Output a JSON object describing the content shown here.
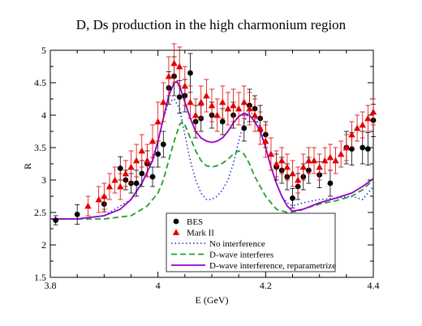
{
  "chart_data": {
    "type": "scatter",
    "title": "D, Ds production in the high charmonium region",
    "xlabel": "E (GeV)",
    "ylabel": "R",
    "xlim": [
      3.8,
      4.4
    ],
    "ylim": [
      1.5,
      5
    ],
    "xticks": [
      "3.8",
      "4",
      "4.2",
      "4.4"
    ],
    "yticks": [
      "1.5",
      "2",
      "2.5",
      "3",
      "3.5",
      "4",
      "4.5",
      "5"
    ],
    "grid": false,
    "legend_position": "bottom-center",
    "colors": {
      "bes": "#000000",
      "markii": "#e00000",
      "no_interference": "#2222cc",
      "d_wave": "#22a022",
      "reparametrize": "#9900cc"
    },
    "series": [
      {
        "name": "BES",
        "kind": "points",
        "marker": "circle",
        "points": [
          [
            3.81,
            2.38,
            0.07
          ],
          [
            3.85,
            2.47,
            0.15
          ],
          [
            3.9,
            2.63,
            0.12
          ],
          [
            3.93,
            3.18,
            0.18
          ],
          [
            3.94,
            3.0,
            0.15
          ],
          [
            3.95,
            2.95,
            0.15
          ],
          [
            3.96,
            2.95,
            0.2
          ],
          [
            3.97,
            3.1,
            0.2
          ],
          [
            3.98,
            3.25,
            0.2
          ],
          [
            3.99,
            3.05,
            0.15
          ],
          [
            4.0,
            3.4,
            0.2
          ],
          [
            4.01,
            3.55,
            0.2
          ],
          [
            4.02,
            4.42,
            0.25
          ],
          [
            4.03,
            4.6,
            0.3
          ],
          [
            4.04,
            4.28,
            0.25
          ],
          [
            4.05,
            4.3,
            0.25
          ],
          [
            4.06,
            4.65,
            0.3
          ],
          [
            4.07,
            3.9,
            0.25
          ],
          [
            4.08,
            3.95,
            0.2
          ],
          [
            4.1,
            4.0,
            0.2
          ],
          [
            4.12,
            3.9,
            0.2
          ],
          [
            4.14,
            4.0,
            0.2
          ],
          [
            4.16,
            3.8,
            0.2
          ],
          [
            4.17,
            4.15,
            0.25
          ],
          [
            4.18,
            4.1,
            0.2
          ],
          [
            4.19,
            3.95,
            0.2
          ],
          [
            4.2,
            3.7,
            0.2
          ],
          [
            4.22,
            3.2,
            0.2
          ],
          [
            4.23,
            3.15,
            0.2
          ],
          [
            4.24,
            3.05,
            0.2
          ],
          [
            4.25,
            2.72,
            0.15
          ],
          [
            4.26,
            2.9,
            0.2
          ],
          [
            4.27,
            3.05,
            0.2
          ],
          [
            4.28,
            3.15,
            0.2
          ],
          [
            4.3,
            3.08,
            0.2
          ],
          [
            4.32,
            2.95,
            0.2
          ],
          [
            4.35,
            3.5,
            0.25
          ],
          [
            4.36,
            3.48,
            0.25
          ],
          [
            4.38,
            3.5,
            0.25
          ],
          [
            4.39,
            3.48,
            0.25
          ],
          [
            4.4,
            3.92,
            0.25
          ]
        ]
      },
      {
        "name": "Mark II",
        "kind": "points",
        "marker": "triangle",
        "points": [
          [
            3.87,
            2.6,
            0.15
          ],
          [
            3.89,
            2.7,
            0.2
          ],
          [
            3.9,
            2.75,
            0.2
          ],
          [
            3.91,
            2.9,
            0.2
          ],
          [
            3.92,
            3.0,
            0.2
          ],
          [
            3.93,
            2.9,
            0.2
          ],
          [
            3.94,
            3.1,
            0.2
          ],
          [
            3.95,
            3.2,
            0.25
          ],
          [
            3.96,
            3.3,
            0.25
          ],
          [
            3.97,
            3.45,
            0.25
          ],
          [
            3.98,
            3.3,
            0.25
          ],
          [
            3.99,
            3.6,
            0.25
          ],
          [
            4.0,
            3.9,
            0.3
          ],
          [
            4.01,
            4.2,
            0.3
          ],
          [
            4.02,
            4.6,
            0.3
          ],
          [
            4.03,
            4.8,
            0.3
          ],
          [
            4.04,
            4.75,
            0.3
          ],
          [
            4.05,
            4.45,
            0.3
          ],
          [
            4.06,
            4.2,
            0.25
          ],
          [
            4.07,
            4.0,
            0.25
          ],
          [
            4.08,
            4.2,
            0.25
          ],
          [
            4.09,
            4.3,
            0.25
          ],
          [
            4.1,
            4.15,
            0.25
          ],
          [
            4.11,
            4.0,
            0.25
          ],
          [
            4.12,
            4.2,
            0.25
          ],
          [
            4.13,
            4.1,
            0.25
          ],
          [
            4.14,
            4.15,
            0.25
          ],
          [
            4.15,
            4.1,
            0.25
          ],
          [
            4.16,
            4.2,
            0.25
          ],
          [
            4.17,
            4.1,
            0.25
          ],
          [
            4.18,
            4.0,
            0.25
          ],
          [
            4.19,
            3.8,
            0.25
          ],
          [
            4.2,
            3.6,
            0.25
          ],
          [
            4.21,
            3.4,
            0.25
          ],
          [
            4.22,
            3.25,
            0.2
          ],
          [
            4.23,
            3.3,
            0.2
          ],
          [
            4.24,
            3.2,
            0.2
          ],
          [
            4.25,
            3.1,
            0.2
          ],
          [
            4.26,
            3.0,
            0.2
          ],
          [
            4.27,
            3.2,
            0.2
          ],
          [
            4.28,
            3.3,
            0.2
          ],
          [
            4.29,
            3.3,
            0.2
          ],
          [
            4.3,
            3.2,
            0.2
          ],
          [
            4.31,
            3.3,
            0.2
          ],
          [
            4.32,
            3.35,
            0.2
          ],
          [
            4.33,
            3.3,
            0.2
          ],
          [
            4.34,
            3.4,
            0.2
          ],
          [
            4.35,
            3.5,
            0.2
          ],
          [
            4.36,
            3.7,
            0.2
          ],
          [
            4.37,
            3.8,
            0.2
          ],
          [
            4.38,
            3.85,
            0.2
          ],
          [
            4.39,
            3.95,
            0.2
          ],
          [
            4.4,
            4.05,
            0.2
          ]
        ]
      },
      {
        "name": "No interference",
        "kind": "line",
        "style": "dotted",
        "x": [
          3.8,
          3.85,
          3.9,
          3.95,
          3.98,
          4.0,
          4.01,
          4.02,
          4.03,
          4.04,
          4.05,
          4.06,
          4.07,
          4.08,
          4.09,
          4.1,
          4.11,
          4.12,
          4.13,
          4.14,
          4.15,
          4.16,
          4.17,
          4.18,
          4.19,
          4.2,
          4.21,
          4.22,
          4.23,
          4.24,
          4.25,
          4.27,
          4.3,
          4.33,
          4.36,
          4.38,
          4.4
        ],
        "y": [
          2.4,
          2.4,
          2.45,
          2.7,
          3.1,
          3.6,
          3.95,
          4.2,
          4.25,
          4.1,
          3.7,
          3.3,
          3.0,
          2.8,
          2.7,
          2.7,
          2.75,
          2.85,
          3.0,
          3.25,
          3.6,
          3.9,
          4.05,
          4.0,
          3.8,
          3.5,
          3.2,
          2.95,
          2.75,
          2.65,
          2.6,
          2.65,
          2.7,
          2.72,
          2.75,
          2.7,
          2.9
        ]
      },
      {
        "name": "D-wave interferes",
        "kind": "line",
        "style": "dashed",
        "x": [
          3.8,
          3.85,
          3.9,
          3.95,
          3.98,
          4.0,
          4.01,
          4.02,
          4.03,
          4.04,
          4.045,
          4.05,
          4.06,
          4.07,
          4.08,
          4.09,
          4.1,
          4.11,
          4.12,
          4.13,
          4.14,
          4.15,
          4.16,
          4.17,
          4.18,
          4.2,
          4.22,
          4.24,
          4.26,
          4.28,
          4.3,
          4.33,
          4.36,
          4.38,
          4.4
        ],
        "y": [
          2.4,
          2.4,
          2.4,
          2.45,
          2.6,
          2.8,
          3.0,
          3.3,
          3.6,
          3.85,
          3.9,
          3.85,
          3.65,
          3.45,
          3.3,
          3.22,
          3.2,
          3.22,
          3.26,
          3.32,
          3.4,
          3.45,
          3.4,
          3.25,
          3.05,
          2.75,
          2.55,
          2.5,
          2.52,
          2.58,
          2.63,
          2.68,
          2.75,
          2.85,
          3.0
        ]
      },
      {
        "name": "D-wave interference, reparametrize",
        "kind": "line",
        "style": "solid",
        "x": [
          3.8,
          3.85,
          3.9,
          3.93,
          3.95,
          3.97,
          3.99,
          4.0,
          4.01,
          4.02,
          4.03,
          4.035,
          4.04,
          4.05,
          4.06,
          4.07,
          4.08,
          4.09,
          4.1,
          4.11,
          4.12,
          4.13,
          4.14,
          4.15,
          4.16,
          4.17,
          4.18,
          4.19,
          4.2,
          4.21,
          4.22,
          4.23,
          4.24,
          4.25,
          4.27,
          4.3,
          4.33,
          4.36,
          4.38,
          4.4
        ],
        "y": [
          2.4,
          2.4,
          2.45,
          2.55,
          2.7,
          2.95,
          3.3,
          3.6,
          3.95,
          4.3,
          4.5,
          4.52,
          4.45,
          4.2,
          3.95,
          3.75,
          3.65,
          3.6,
          3.58,
          3.6,
          3.65,
          3.75,
          3.88,
          3.98,
          4.03,
          4.0,
          3.9,
          3.75,
          3.5,
          3.2,
          2.95,
          2.75,
          2.6,
          2.52,
          2.55,
          2.65,
          2.72,
          2.8,
          2.9,
          3.02
        ]
      }
    ]
  }
}
